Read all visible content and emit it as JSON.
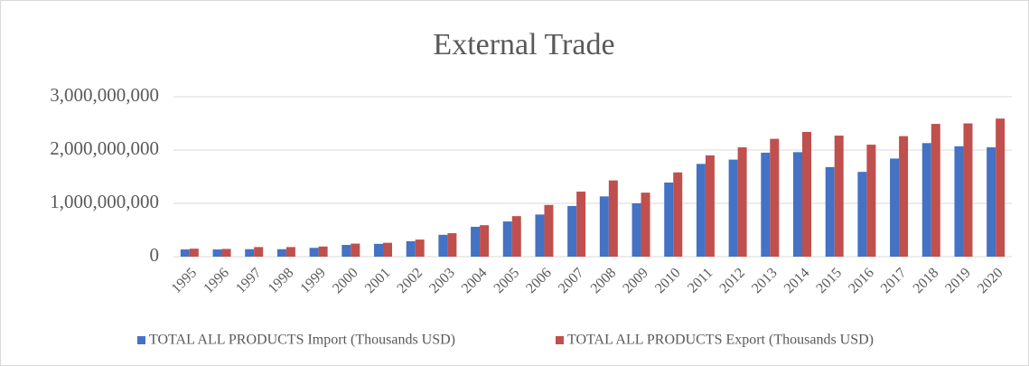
{
  "chart_data": {
    "type": "bar",
    "title": "External Trade",
    "categories": [
      "1995",
      "1996",
      "1997",
      "1998",
      "1999",
      "2000",
      "2001",
      "2002",
      "2003",
      "2004",
      "2005",
      "2006",
      "2007",
      "2008",
      "2009",
      "2010",
      "2011",
      "2012",
      "2013",
      "2014",
      "2015",
      "2016",
      "2017",
      "2018",
      "2019",
      "2020"
    ],
    "series": [
      {
        "name": "TOTAL ALL PRODUCTS Import (Thousands USD)",
        "color": "#4472c4",
        "values": [
          135000000,
          135000000,
          140000000,
          140000000,
          165000000,
          220000000,
          240000000,
          290000000,
          410000000,
          560000000,
          660000000,
          790000000,
          950000000,
          1130000000,
          1000000000,
          1390000000,
          1740000000,
          1820000000,
          1950000000,
          1960000000,
          1680000000,
          1590000000,
          1840000000,
          2130000000,
          2070000000,
          2050000000
        ]
      },
      {
        "name": "TOTAL ALL PRODUCTS Export (Thousands USD)",
        "color": "#c0504d",
        "values": [
          150000000,
          145000000,
          180000000,
          180000000,
          190000000,
          245000000,
          260000000,
          320000000,
          440000000,
          590000000,
          760000000,
          970000000,
          1220000000,
          1430000000,
          1200000000,
          1580000000,
          1900000000,
          2050000000,
          2210000000,
          2340000000,
          2270000000,
          2100000000,
          2260000000,
          2490000000,
          2500000000,
          2590000000
        ]
      }
    ],
    "ylim": [
      0,
      3000000000
    ],
    "yticks": [
      0,
      {
        "value": 1000000000,
        "label": "1,000,000,000"
      },
      {
        "value": 2000000000,
        "label": "2,000,000,000"
      },
      {
        "value": 3000000000,
        "label": "3,000,000,000"
      }
    ],
    "grid": true,
    "legend": "bottom"
  }
}
